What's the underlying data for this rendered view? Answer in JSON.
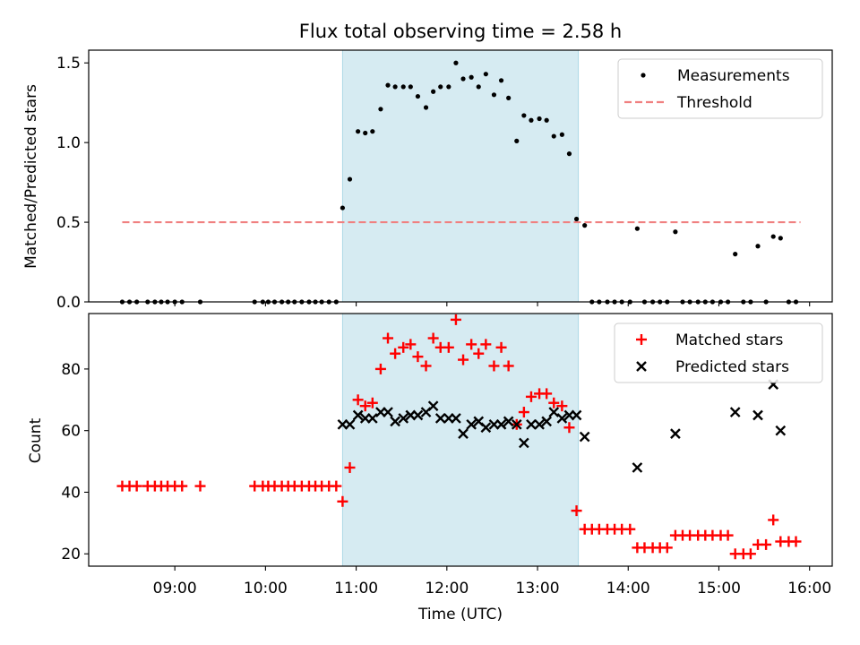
{
  "chart_data": {
    "title": "Flux total observing time = 2.58 h",
    "xlabel": "Time (UTC)",
    "x_ticks": [
      "09:00",
      "10:00",
      "11:00",
      "12:00",
      "13:00",
      "14:00",
      "15:00",
      "16:00"
    ],
    "x_range_hours": [
      8.05,
      16.25
    ],
    "shaded_interval_hours": [
      10.85,
      13.45
    ],
    "panels": [
      {
        "type": "scatter",
        "ylabel": "Matched/Predicted stars",
        "ylim": [
          0,
          1.58
        ],
        "y_ticks": [
          "0.0",
          "0.5",
          "1.0",
          "1.5"
        ],
        "legend": {
          "position": "top-right",
          "entries": [
            "Measurements",
            "Threshold"
          ]
        },
        "series": [
          {
            "name": "Measurements",
            "marker": "dot",
            "color": "#000000",
            "points": [
              [
                8.42,
                0
              ],
              [
                8.5,
                0
              ],
              [
                8.58,
                0
              ],
              [
                8.7,
                0
              ],
              [
                8.78,
                0
              ],
              [
                8.85,
                0
              ],
              [
                8.92,
                0
              ],
              [
                9.0,
                0
              ],
              [
                9.08,
                0
              ],
              [
                9.28,
                0
              ],
              [
                9.88,
                0
              ],
              [
                9.97,
                0
              ],
              [
                10.03,
                0
              ],
              [
                10.1,
                0
              ],
              [
                10.18,
                0
              ],
              [
                10.25,
                0
              ],
              [
                10.32,
                0
              ],
              [
                10.4,
                0
              ],
              [
                10.48,
                0
              ],
              [
                10.55,
                0
              ],
              [
                10.62,
                0
              ],
              [
                10.7,
                0
              ],
              [
                10.78,
                0
              ],
              [
                10.85,
                0.59
              ],
              [
                10.93,
                0.77
              ],
              [
                11.02,
                1.07
              ],
              [
                11.1,
                1.06
              ],
              [
                11.18,
                1.07
              ],
              [
                11.27,
                1.21
              ],
              [
                11.35,
                1.36
              ],
              [
                11.43,
                1.35
              ],
              [
                11.52,
                1.35
              ],
              [
                11.6,
                1.35
              ],
              [
                11.68,
                1.29
              ],
              [
                11.77,
                1.22
              ],
              [
                11.85,
                1.32
              ],
              [
                11.93,
                1.35
              ],
              [
                12.02,
                1.35
              ],
              [
                12.1,
                1.5
              ],
              [
                12.18,
                1.4
              ],
              [
                12.27,
                1.41
              ],
              [
                12.35,
                1.35
              ],
              [
                12.43,
                1.43
              ],
              [
                12.52,
                1.3
              ],
              [
                12.6,
                1.39
              ],
              [
                12.68,
                1.28
              ],
              [
                12.77,
                1.01
              ],
              [
                12.85,
                1.17
              ],
              [
                12.93,
                1.14
              ],
              [
                13.02,
                1.15
              ],
              [
                13.1,
                1.14
              ],
              [
                13.18,
                1.04
              ],
              [
                13.27,
                1.05
              ],
              [
                13.35,
                0.93
              ],
              [
                13.43,
                0.52
              ],
              [
                13.52,
                0.48
              ],
              [
                13.6,
                0
              ],
              [
                13.68,
                0
              ],
              [
                13.77,
                0
              ],
              [
                13.85,
                0
              ],
              [
                13.93,
                0
              ],
              [
                14.02,
                0
              ],
              [
                14.1,
                0.46
              ],
              [
                14.18,
                0
              ],
              [
                14.27,
                0
              ],
              [
                14.35,
                0
              ],
              [
                14.43,
                0
              ],
              [
                14.52,
                0.44
              ],
              [
                14.6,
                0
              ],
              [
                14.68,
                0
              ],
              [
                14.77,
                0
              ],
              [
                14.85,
                0
              ],
              [
                14.93,
                0
              ],
              [
                15.02,
                0
              ],
              [
                15.1,
                0
              ],
              [
                15.18,
                0.3
              ],
              [
                15.27,
                0
              ],
              [
                15.35,
                0
              ],
              [
                15.43,
                0.35
              ],
              [
                15.52,
                0
              ],
              [
                15.6,
                0.41
              ],
              [
                15.68,
                0.4
              ],
              [
                15.77,
                0
              ],
              [
                15.85,
                0
              ]
            ]
          },
          {
            "name": "Threshold",
            "marker": "dashed-line",
            "color": "#f08080",
            "points": [
              [
                8.42,
                0.5
              ],
              [
                15.9,
                0.5
              ]
            ]
          }
        ]
      },
      {
        "type": "scatter",
        "ylabel": "Count",
        "ylim": [
          16,
          98
        ],
        "y_ticks": [
          "20",
          "40",
          "60",
          "80"
        ],
        "legend": {
          "position": "top-right",
          "entries": [
            "Matched stars",
            "Predicted stars"
          ]
        },
        "series": [
          {
            "name": "Matched stars",
            "marker": "plus",
            "color": "#ff0000",
            "points": [
              [
                8.42,
                42
              ],
              [
                8.5,
                42
              ],
              [
                8.58,
                42
              ],
              [
                8.7,
                42
              ],
              [
                8.78,
                42
              ],
              [
                8.85,
                42
              ],
              [
                8.92,
                42
              ],
              [
                9.0,
                42
              ],
              [
                9.08,
                42
              ],
              [
                9.28,
                42
              ],
              [
                9.88,
                42
              ],
              [
                9.97,
                42
              ],
              [
                10.03,
                42
              ],
              [
                10.1,
                42
              ],
              [
                10.18,
                42
              ],
              [
                10.25,
                42
              ],
              [
                10.32,
                42
              ],
              [
                10.4,
                42
              ],
              [
                10.48,
                42
              ],
              [
                10.55,
                42
              ],
              [
                10.62,
                42
              ],
              [
                10.7,
                42
              ],
              [
                10.78,
                42
              ],
              [
                10.85,
                37
              ],
              [
                10.93,
                48
              ],
              [
                11.02,
                70
              ],
              [
                11.1,
                68
              ],
              [
                11.18,
                69
              ],
              [
                11.27,
                80
              ],
              [
                11.35,
                90
              ],
              [
                11.43,
                85
              ],
              [
                11.52,
                87
              ],
              [
                11.6,
                88
              ],
              [
                11.68,
                84
              ],
              [
                11.77,
                81
              ],
              [
                11.85,
                90
              ],
              [
                11.93,
                87
              ],
              [
                12.02,
                87
              ],
              [
                12.1,
                96
              ],
              [
                12.18,
                83
              ],
              [
                12.27,
                88
              ],
              [
                12.35,
                85
              ],
              [
                12.43,
                88
              ],
              [
                12.52,
                81
              ],
              [
                12.6,
                87
              ],
              [
                12.68,
                81
              ],
              [
                12.77,
                62
              ],
              [
                12.85,
                66
              ],
              [
                12.93,
                71
              ],
              [
                13.02,
                72
              ],
              [
                13.1,
                72
              ],
              [
                13.18,
                69
              ],
              [
                13.27,
                68
              ],
              [
                13.35,
                61
              ],
              [
                13.43,
                34
              ],
              [
                13.52,
                28
              ],
              [
                13.6,
                28
              ],
              [
                13.68,
                28
              ],
              [
                13.77,
                28
              ],
              [
                13.85,
                28
              ],
              [
                13.93,
                28
              ],
              [
                14.02,
                28
              ],
              [
                14.1,
                22
              ],
              [
                14.18,
                22
              ],
              [
                14.27,
                22
              ],
              [
                14.35,
                22
              ],
              [
                14.43,
                22
              ],
              [
                14.52,
                26
              ],
              [
                14.6,
                26
              ],
              [
                14.68,
                26
              ],
              [
                14.77,
                26
              ],
              [
                14.85,
                26
              ],
              [
                14.93,
                26
              ],
              [
                15.02,
                26
              ],
              [
                15.1,
                26
              ],
              [
                15.18,
                20
              ],
              [
                15.27,
                20
              ],
              [
                15.35,
                20
              ],
              [
                15.43,
                23
              ],
              [
                15.52,
                23
              ],
              [
                15.6,
                31
              ],
              [
                15.68,
                24
              ],
              [
                15.77,
                24
              ],
              [
                15.85,
                24
              ]
            ]
          },
          {
            "name": "Predicted stars",
            "marker": "x",
            "color": "#000000",
            "points": [
              [
                10.85,
                62
              ],
              [
                10.93,
                62
              ],
              [
                11.02,
                65
              ],
              [
                11.1,
                64
              ],
              [
                11.18,
                64
              ],
              [
                11.27,
                66
              ],
              [
                11.35,
                66
              ],
              [
                11.43,
                63
              ],
              [
                11.52,
                64
              ],
              [
                11.6,
                65
              ],
              [
                11.68,
                65
              ],
              [
                11.77,
                66
              ],
              [
                11.85,
                68
              ],
              [
                11.93,
                64
              ],
              [
                12.02,
                64
              ],
              [
                12.1,
                64
              ],
              [
                12.18,
                59
              ],
              [
                12.27,
                62
              ],
              [
                12.35,
                63
              ],
              [
                12.43,
                61
              ],
              [
                12.52,
                62
              ],
              [
                12.6,
                62
              ],
              [
                12.68,
                63
              ],
              [
                12.77,
                62
              ],
              [
                12.85,
                56
              ],
              [
                12.93,
                62
              ],
              [
                13.02,
                62
              ],
              [
                13.1,
                63
              ],
              [
                13.18,
                66
              ],
              [
                13.27,
                64
              ],
              [
                13.35,
                65
              ],
              [
                13.43,
                65
              ],
              [
                13.52,
                58
              ],
              [
                14.1,
                48
              ],
              [
                14.52,
                59
              ],
              [
                15.18,
                66
              ],
              [
                15.43,
                65
              ],
              [
                15.6,
                75
              ],
              [
                15.68,
                60
              ]
            ]
          }
        ]
      }
    ]
  }
}
